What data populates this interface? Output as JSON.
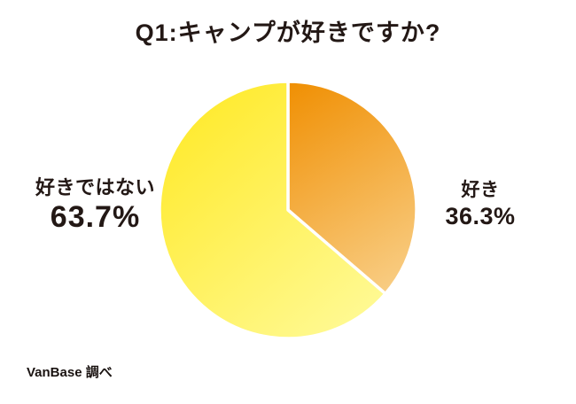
{
  "title": "Q1:キャンプが好きですか?",
  "source_note": "VanBase 調べ",
  "colors": {
    "text": "#231815",
    "background": "#ffffff",
    "slice_border": "#ffffff",
    "orange_dark": "#F08F02",
    "orange_light": "#F9D18C",
    "yellow_dark": "#FFE820",
    "yellow_light": "#FFFB9D"
  },
  "chart_data": {
    "type": "pie",
    "title": "Q1:キャンプが好きですか?",
    "unit": "%",
    "start_angle_deg": -90,
    "direction": "clockwise",
    "legend_position": "none",
    "labels_position": "outside",
    "slices": [
      {
        "key": "like",
        "label": "好き",
        "value": 36.3,
        "value_label": "36.3%",
        "color_from": "#F08F02",
        "color_to": "#F9D18C",
        "label_side": "right"
      },
      {
        "key": "dislike",
        "label": "好きではない",
        "value": 63.7,
        "value_label": "63.7%",
        "color_from": "#FFE820",
        "color_to": "#FFFB9D",
        "label_side": "left"
      }
    ],
    "source_note": "VanBase 調べ"
  }
}
